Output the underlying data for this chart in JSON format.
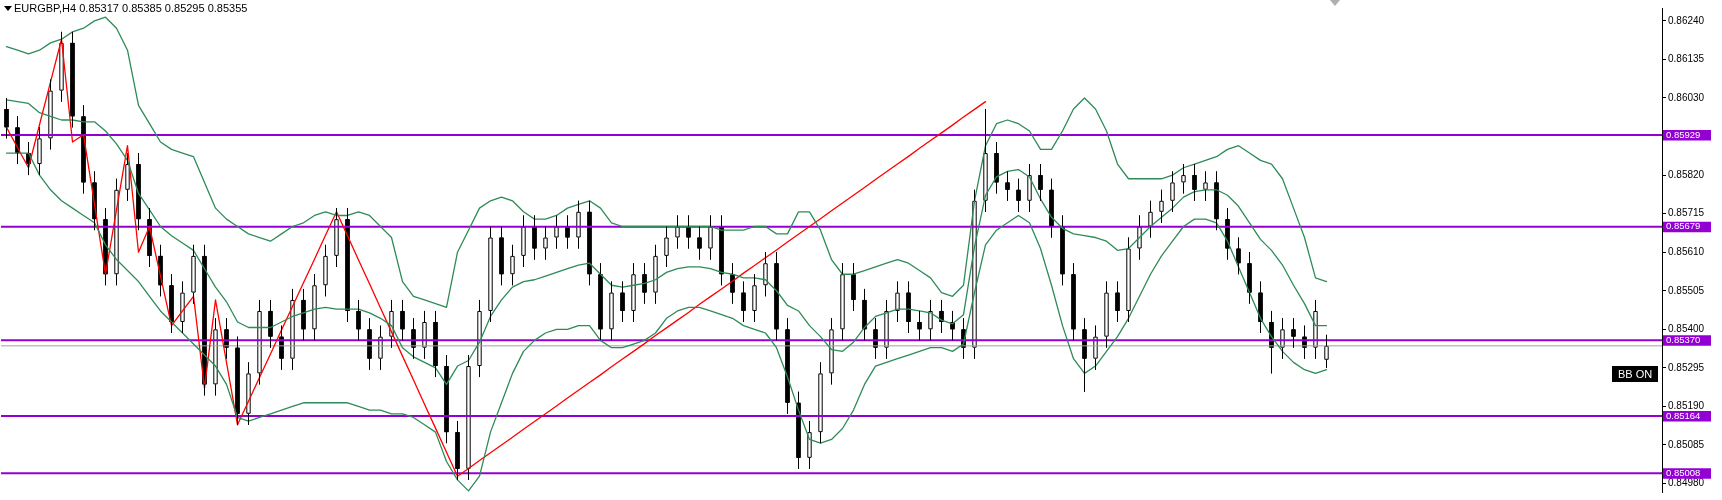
{
  "chart_data": {
    "type": "candlestick",
    "title": "EURGBP,H4 0.85317 0.85385 0.85295 0.85355",
    "categories": [
      null,
      null,
      null,
      null,
      null,
      null,
      null,
      null,
      null,
      null,
      null,
      null,
      null,
      null,
      null,
      null,
      null,
      null,
      null,
      null,
      null,
      null,
      null,
      null,
      null,
      null,
      null,
      null,
      null,
      null,
      null,
      null,
      null,
      null,
      null,
      null,
      null,
      null,
      null,
      null,
      null,
      null,
      null,
      null,
      null,
      null,
      null,
      null,
      null,
      null,
      null,
      null,
      null,
      null,
      null,
      null,
      null,
      null,
      null,
      null,
      null,
      null,
      null,
      null,
      null,
      null,
      null,
      null,
      null,
      null,
      null,
      null,
      null,
      null,
      null,
      null,
      null,
      null,
      null,
      null,
      null,
      null,
      null,
      null,
      null,
      null,
      null,
      null,
      null,
      null,
      null,
      null,
      null,
      null,
      null,
      null,
      null,
      null,
      null,
      null,
      null,
      null,
      null,
      null,
      null,
      null,
      null,
      null,
      null,
      null,
      null,
      null,
      null,
      null,
      null,
      null,
      null,
      null,
      null,
      null,
      null,
      null,
      null,
      null,
      null,
      null,
      null,
      null,
      null,
      null,
      null,
      null,
      null,
      null,
      null,
      null,
      null,
      null,
      null,
      null,
      null,
      null,
      null,
      null,
      null,
      null,
      null,
      null,
      null,
      null,
      null
    ],
    "ohlc": [
      [
        0.86,
        0.8603,
        0.8592,
        0.8595
      ],
      [
        0.8595,
        0.8598,
        0.8585,
        0.8588
      ],
      [
        0.8588,
        0.8591,
        0.8582,
        0.8585
      ],
      [
        0.8585,
        0.8595,
        0.8582,
        0.8592
      ],
      [
        0.8592,
        0.8608,
        0.8589,
        0.8605
      ],
      [
        0.8605,
        0.8621,
        0.8602,
        0.8618
      ],
      [
        0.8618,
        0.8621,
        0.8595,
        0.8598
      ],
      [
        0.8598,
        0.8601,
        0.8577,
        0.858
      ],
      [
        0.858,
        0.8583,
        0.8567,
        0.857
      ],
      [
        0.857,
        0.8573,
        0.8552,
        0.8555
      ],
      [
        0.8555,
        0.8581,
        0.8552,
        0.8578
      ],
      [
        0.8578,
        0.8588,
        0.8575,
        0.8585
      ],
      [
        0.8585,
        0.8588,
        0.8567,
        0.857
      ],
      [
        0.857,
        0.8573,
        0.8557,
        0.856
      ],
      [
        0.856,
        0.8563,
        0.8549,
        0.8552
      ],
      [
        0.8552,
        0.8555,
        0.8539,
        0.8542
      ],
      [
        0.8542,
        0.8553,
        0.8539,
        0.855
      ],
      [
        0.855,
        0.8563,
        0.8547,
        0.856
      ],
      [
        0.856,
        0.8563,
        0.8522,
        0.8525
      ],
      [
        0.8525,
        0.8543,
        0.8522,
        0.854
      ],
      [
        0.854,
        0.8543,
        0.8532,
        0.8535
      ],
      [
        0.8535,
        0.8538,
        0.8514,
        0.8517
      ],
      [
        0.8517,
        0.8531,
        0.8514,
        0.8528
      ],
      [
        0.8528,
        0.8548,
        0.8525,
        0.8545
      ],
      [
        0.8545,
        0.8548,
        0.8535,
        0.8538
      ],
      [
        0.8538,
        0.8541,
        0.8529,
        0.8532
      ],
      [
        0.8532,
        0.8551,
        0.8529,
        0.8548
      ],
      [
        0.8548,
        0.8551,
        0.8537,
        0.854
      ],
      [
        0.854,
        0.8555,
        0.8537,
        0.8552
      ],
      [
        0.8552,
        0.8563,
        0.8549,
        0.856
      ],
      [
        0.856,
        0.8573,
        0.8557,
        0.857
      ],
      [
        0.857,
        0.8573,
        0.8542,
        0.8545
      ],
      [
        0.8545,
        0.8548,
        0.8537,
        0.854
      ],
      [
        0.854,
        0.8543,
        0.8529,
        0.8532
      ],
      [
        0.8532,
        0.8541,
        0.8529,
        0.8538
      ],
      [
        0.8538,
        0.8548,
        0.8535,
        0.8545
      ],
      [
        0.8545,
        0.8548,
        0.8537,
        0.854
      ],
      [
        0.854,
        0.8543,
        0.8532,
        0.8535
      ],
      [
        0.8535,
        0.8545,
        0.8532,
        0.8542
      ],
      [
        0.8542,
        0.8545,
        0.8527,
        0.853
      ],
      [
        0.853,
        0.8533,
        0.8509,
        0.8512
      ],
      [
        0.8512,
        0.8515,
        0.8499,
        0.8502
      ],
      [
        0.8502,
        0.8533,
        0.8499,
        0.853
      ],
      [
        0.853,
        0.8548,
        0.8527,
        0.8545
      ],
      [
        0.8545,
        0.8568,
        0.8542,
        0.8565
      ],
      [
        0.8565,
        0.8568,
        0.8552,
        0.8555
      ],
      [
        0.8555,
        0.8563,
        0.8552,
        0.856
      ],
      [
        0.856,
        0.8571,
        0.8557,
        0.8568
      ],
      [
        0.8568,
        0.8571,
        0.8559,
        0.8562
      ],
      [
        0.8562,
        0.8568,
        0.8559,
        0.8565
      ],
      [
        0.8565,
        0.8571,
        0.8562,
        0.8568
      ],
      [
        0.8568,
        0.8571,
        0.8562,
        0.8565
      ],
      [
        0.8565,
        0.8575,
        0.8562,
        0.8572
      ],
      [
        0.8572,
        0.8575,
        0.8552,
        0.8555
      ],
      [
        0.8555,
        0.8558,
        0.8537,
        0.854
      ],
      [
        0.854,
        0.8553,
        0.8537,
        0.855
      ],
      [
        0.855,
        0.8553,
        0.8542,
        0.8545
      ],
      [
        0.8545,
        0.8558,
        0.8542,
        0.8555
      ],
      [
        0.8555,
        0.8558,
        0.8547,
        0.855
      ],
      [
        0.855,
        0.8563,
        0.8547,
        0.856
      ],
      [
        0.856,
        0.8568,
        0.8557,
        0.8565
      ],
      [
        0.8565,
        0.8571,
        0.8562,
        0.8568
      ],
      [
        0.8568,
        0.8571,
        0.8562,
        0.8565
      ],
      [
        0.8565,
        0.8568,
        0.8559,
        0.8562
      ],
      [
        0.8562,
        0.8571,
        0.8559,
        0.8568
      ],
      [
        0.8568,
        0.8571,
        0.8552,
        0.8555
      ],
      [
        0.8555,
        0.8558,
        0.8547,
        0.855
      ],
      [
        0.855,
        0.8553,
        0.8542,
        0.8545
      ],
      [
        0.8545,
        0.8555,
        0.8542,
        0.8552
      ],
      [
        0.8552,
        0.8561,
        0.8549,
        0.8558
      ],
      [
        0.8558,
        0.8561,
        0.8537,
        0.854
      ],
      [
        0.854,
        0.8543,
        0.8517,
        0.852
      ],
      [
        0.852,
        0.8523,
        0.8502,
        0.8505
      ],
      [
        0.8505,
        0.8515,
        0.8502,
        0.8512
      ],
      [
        0.8512,
        0.8531,
        0.8509,
        0.8528
      ],
      [
        0.8528,
        0.8543,
        0.8525,
        0.854
      ],
      [
        0.854,
        0.8558,
        0.8537,
        0.8555
      ],
      [
        0.8555,
        0.8558,
        0.8545,
        0.8548
      ],
      [
        0.8548,
        0.8551,
        0.8537,
        0.854
      ],
      [
        0.854,
        0.8543,
        0.8532,
        0.8535
      ],
      [
        0.8535,
        0.8548,
        0.8532,
        0.8545
      ],
      [
        0.8545,
        0.8553,
        0.8542,
        0.855
      ],
      [
        0.855,
        0.8553,
        0.8539,
        0.8542
      ],
      [
        0.8542,
        0.8545,
        0.8537,
        0.854
      ],
      [
        0.854,
        0.8548,
        0.8537,
        0.8545
      ],
      [
        0.8545,
        0.8548,
        0.8539,
        0.8542
      ],
      [
        0.8542,
        0.8545,
        0.8537,
        0.854
      ],
      [
        0.854,
        0.8543,
        0.8532,
        0.8535
      ],
      [
        0.8535,
        0.8578,
        0.8532,
        0.8575
      ],
      [
        0.8575,
        0.86,
        0.8572,
        0.8588
      ],
      [
        0.8588,
        0.8591,
        0.8577,
        0.858
      ],
      [
        0.858,
        0.8583,
        0.8575,
        0.8578
      ],
      [
        0.8578,
        0.8581,
        0.8572,
        0.8575
      ],
      [
        0.8575,
        0.8585,
        0.8572,
        0.8582
      ],
      [
        0.8582,
        0.8585,
        0.8575,
        0.8578
      ],
      [
        0.8578,
        0.8581,
        0.8565,
        0.8568
      ],
      [
        0.8568,
        0.8571,
        0.8552,
        0.8555
      ],
      [
        0.8555,
        0.8558,
        0.8537,
        0.854
      ],
      [
        0.854,
        0.8543,
        0.8523,
        0.8532
      ],
      [
        0.8532,
        0.8541,
        0.8529,
        0.8538
      ],
      [
        0.8538,
        0.8553,
        0.8535,
        0.855
      ],
      [
        0.855,
        0.8553,
        0.8542,
        0.8545
      ],
      [
        0.8545,
        0.8565,
        0.8542,
        0.8562
      ],
      [
        0.8562,
        0.8571,
        0.8559,
        0.8568
      ],
      [
        0.8568,
        0.8575,
        0.8565,
        0.8572
      ],
      [
        0.8572,
        0.8578,
        0.8569,
        0.8575
      ],
      [
        0.8575,
        0.8583,
        0.8572,
        0.858
      ],
      [
        0.858,
        0.8585,
        0.8577,
        0.8582
      ],
      [
        0.8582,
        0.8585,
        0.8575,
        0.8578
      ],
      [
        0.8578,
        0.8583,
        0.8575,
        0.858
      ],
      [
        0.858,
        0.8583,
        0.8567,
        0.857
      ],
      [
        0.857,
        0.8573,
        0.8559,
        0.8562
      ],
      [
        0.8562,
        0.8565,
        0.8555,
        0.8558
      ],
      [
        0.8558,
        0.8561,
        0.8547,
        0.855
      ],
      [
        0.855,
        0.8553,
        0.8539,
        0.8542
      ],
      [
        0.8542,
        0.8545,
        0.8528,
        0.8535
      ],
      [
        0.8535,
        0.8543,
        0.8532,
        0.854
      ],
      [
        0.854,
        0.8543,
        0.8535,
        0.8538
      ],
      [
        0.8538,
        0.8541,
        0.8532,
        0.8535
      ],
      [
        0.8535,
        0.8548,
        0.8532,
        0.8545
      ],
      [
        0.85317,
        0.85385,
        0.85295,
        0.85355
      ],
      null,
      null,
      null,
      null,
      null,
      null,
      null,
      null,
      null,
      null,
      null,
      null,
      null,
      null,
      null,
      null,
      null,
      null,
      null,
      null,
      null,
      null,
      null,
      null,
      null,
      null,
      null,
      null,
      null,
      null
    ],
    "color": "#000000",
    "colors": [
      "#000000",
      "#000000",
      "#000000",
      "#ffffff",
      "#ffffff",
      "#ffffff",
      "#000000",
      "#000000",
      "#000000",
      "#000000",
      "#ffffff",
      "#ffffff",
      "#000000",
      "#000000",
      "#000000",
      "#000000",
      "#ffffff",
      "#ffffff",
      "#000000",
      "#ffffff",
      "#000000",
      "#000000",
      "#ffffff",
      "#ffffff",
      "#000000",
      "#000000",
      "#ffffff",
      "#000000",
      "#ffffff",
      "#ffffff",
      "#ffffff",
      "#000000",
      "#000000",
      "#000000",
      "#ffffff",
      "#ffffff",
      "#000000",
      "#000000",
      "#ffffff",
      "#000000",
      "#000000",
      "#000000",
      "#ffffff",
      "#ffffff",
      "#ffffff",
      "#000000",
      "#ffffff",
      "#ffffff",
      "#000000",
      "#ffffff",
      "#ffffff",
      "#000000",
      "#ffffff",
      "#000000",
      "#000000",
      "#ffffff",
      "#000000",
      "#ffffff",
      "#000000",
      "#ffffff",
      "#ffffff",
      "#ffffff",
      "#000000",
      "#000000",
      "#ffffff",
      "#000000",
      "#000000",
      "#000000",
      "#ffffff",
      "#ffffff",
      "#000000",
      "#000000",
      "#000000",
      "#ffffff",
      "#ffffff",
      "#ffffff",
      "#ffffff",
      "#000000",
      "#000000",
      "#000000",
      "#ffffff",
      "#ffffff",
      "#000000",
      "#000000",
      "#ffffff",
      "#000000",
      "#000000",
      "#000000",
      "#ffffff",
      "#ffffff",
      "#000000",
      "#000000",
      "#000000",
      "#ffffff",
      "#000000",
      "#000000",
      "#000000",
      "#000000",
      "#000000",
      "#ffffff",
      "#ffffff",
      "#000000",
      "#ffffff",
      "#ffffff",
      "#ffffff",
      "#ffffff",
      "#ffffff",
      "#ffffff",
      "#000000",
      "#ffffff",
      "#000000",
      "#000000",
      "#000000",
      "#000000",
      "#000000",
      "#000000",
      "#ffffff",
      "#000000",
      "#000000",
      "#ffffff",
      "#ffffff",
      null,
      null,
      null,
      null,
      null,
      null,
      null,
      null,
      null,
      null,
      null,
      null,
      null,
      null,
      null,
      null,
      null,
      null,
      null,
      null,
      null,
      null,
      null,
      null,
      null,
      null,
      null,
      null,
      null,
      null
    ],
    "series": [
      {
        "type": "line",
        "color": "#2e8b57",
        "values": [
          0.8617,
          0.8616,
          0.8615,
          0.8616,
          0.8618,
          0.8619,
          0.8621,
          0.8622,
          0.8624,
          0.8625,
          0.8622,
          0.8616,
          0.8601,
          0.8596,
          0.8591,
          0.8589,
          0.8588,
          0.8587,
          0.858,
          0.8573,
          0.857,
          0.8568,
          0.8566,
          0.8565,
          0.8564,
          0.8566,
          0.8568,
          0.8569,
          0.8571,
          0.8572,
          0.8571,
          0.8571,
          0.8572,
          0.8571,
          0.8568,
          0.8565,
          0.8553,
          0.8549,
          0.8548,
          0.8547,
          0.8546,
          0.8561,
          0.8567,
          0.8573,
          0.8575,
          0.8576,
          0.8575,
          0.8572,
          0.857,
          0.857,
          0.8571,
          0.8573,
          0.8574,
          0.8575,
          0.8573,
          0.8569,
          0.8568,
          0.8568,
          0.8568,
          0.8568,
          0.8568,
          0.8568,
          0.8568,
          0.8568,
          0.8568,
          0.8567,
          0.8567,
          0.8567,
          0.8568,
          0.8568,
          0.8566,
          0.8566,
          0.8572,
          0.8572,
          0.8567,
          0.8559,
          0.8555,
          0.8555,
          0.8556,
          0.8557,
          0.8558,
          0.8559,
          0.8558,
          0.8556,
          0.8554,
          0.855,
          0.8549,
          0.8552,
          0.8575,
          0.859,
          0.8596,
          0.8597,
          0.8596,
          0.8594,
          0.8589,
          0.8589,
          0.8594,
          0.86,
          0.8603,
          0.86,
          0.8594,
          0.8585,
          0.8581,
          0.8581,
          0.8581,
          0.8581,
          0.8582,
          0.8584,
          0.8585,
          0.8586,
          0.8587,
          0.8589,
          0.859,
          0.8588,
          0.8586,
          0.8585,
          0.8581,
          0.8573,
          0.8565,
          0.8554,
          0.8553,
          null,
          null,
          null,
          null,
          null,
          null,
          null,
          null,
          null,
          null,
          null,
          null,
          null,
          null,
          null,
          null,
          null,
          null,
          null,
          null,
          null,
          null,
          null,
          null,
          null,
          null,
          null,
          null,
          null,
          null
        ]
      },
      {
        "type": "line",
        "color": "#2e8b57",
        "values": [
          0.86025,
          0.8602,
          0.86015,
          0.8599,
          0.8598,
          0.8597,
          0.8597,
          0.85965,
          0.85965,
          0.8594,
          0.85905,
          0.8586,
          0.8577,
          0.85725,
          0.8568,
          0.85655,
          0.85635,
          0.85615,
          0.85565,
          0.85515,
          0.85475,
          0.8542,
          0.85405,
          0.85405,
          0.85405,
          0.8542,
          0.85435,
          0.85445,
          0.85455,
          0.8546,
          0.85455,
          0.85455,
          0.85455,
          0.85445,
          0.8543,
          0.8541,
          0.8535,
          0.85325,
          0.8531,
          0.85295,
          0.8525,
          0.853,
          0.85315,
          0.85365,
          0.85435,
          0.8548,
          0.85515,
          0.8553,
          0.85535,
          0.85545,
          0.85555,
          0.85565,
          0.85575,
          0.8558,
          0.8555,
          0.8552,
          0.85515,
          0.8552,
          0.85525,
          0.85535,
          0.85555,
          0.85565,
          0.8557,
          0.8557,
          0.85565,
          0.85555,
          0.8555,
          0.8554,
          0.8554,
          0.85535,
          0.85505,
          0.85465,
          0.8545,
          0.8541,
          0.8538,
          0.85345,
          0.8534,
          0.85365,
          0.85405,
          0.85435,
          0.85445,
          0.85455,
          0.85455,
          0.8545,
          0.85445,
          0.85425,
          0.85415,
          0.8544,
          0.85625,
          0.85765,
          0.85815,
          0.8583,
          0.85835,
          0.85815,
          0.85755,
          0.85705,
          0.85675,
          0.8566,
          0.85655,
          0.8565,
          0.8564,
          0.85615,
          0.8562,
          0.8565,
          0.8568,
          0.85705,
          0.8573,
          0.8576,
          0.85775,
          0.8578,
          0.8578,
          0.85765,
          0.85735,
          0.8569,
          0.85645,
          0.85615,
          0.85575,
          0.8552,
          0.8547,
          0.8541,
          0.8541,
          null,
          null,
          null,
          null,
          null,
          null,
          null,
          null,
          null,
          null,
          null,
          null,
          null,
          null,
          null,
          null,
          null,
          null,
          null,
          null,
          null,
          null,
          null,
          null,
          null,
          null,
          null,
          null,
          null,
          null
        ]
      },
      {
        "type": "line",
        "color": "#2e8b57",
        "values": [
          0.8588,
          0.8588,
          0.8588,
          0.8582,
          0.8578,
          0.8575,
          0.8573,
          0.8571,
          0.8569,
          0.8563,
          0.8559,
          0.8556,
          0.8553,
          0.8549,
          0.8545,
          0.8542,
          0.8539,
          0.8536,
          0.8533,
          0.853,
          0.8525,
          0.8516,
          0.8515,
          0.8516,
          0.8517,
          0.8518,
          0.8519,
          0.852,
          0.852,
          0.852,
          0.852,
          0.852,
          0.8519,
          0.8518,
          0.8518,
          0.8517,
          0.8517,
          0.8516,
          0.8514,
          0.8512,
          0.8504,
          0.8499,
          0.8496,
          0.85,
          0.8512,
          0.852,
          0.8528,
          0.8534,
          0.8537,
          0.8539,
          0.854,
          0.854,
          0.8541,
          0.8541,
          0.8537,
          0.8535,
          0.8535,
          0.8536,
          0.8537,
          0.8539,
          0.8543,
          0.8545,
          0.8546,
          0.8546,
          0.8545,
          0.8544,
          0.8543,
          0.8541,
          0.854,
          0.8539,
          0.8535,
          0.8527,
          0.8518,
          0.851,
          0.8509,
          0.851,
          0.8513,
          0.8518,
          0.8525,
          0.853,
          0.8531,
          0.8532,
          0.8533,
          0.8534,
          0.8535,
          0.8535,
          0.8534,
          0.8536,
          0.855,
          0.8563,
          0.8567,
          0.8569,
          0.8571,
          0.8569,
          0.8562,
          0.8552,
          0.8541,
          0.8532,
          0.8528,
          0.853,
          0.8534,
          0.8538,
          0.8543,
          0.8549,
          0.8555,
          0.856,
          0.8564,
          0.8568,
          0.857,
          0.857,
          0.8569,
          0.8564,
          0.8557,
          0.855,
          0.8543,
          0.8538,
          0.8534,
          0.8531,
          0.8529,
          0.8528,
          0.8529,
          null,
          null,
          null,
          null,
          null,
          null,
          null,
          null,
          null,
          null,
          null,
          null,
          null,
          null,
          null,
          null,
          null,
          null,
          null,
          null,
          null,
          null,
          null,
          null,
          null,
          null,
          null,
          null,
          null,
          null
        ]
      },
      {
        "type": "line",
        "color": "#ff0000",
        "values": [
          0.8595,
          0.85895,
          0.8584,
          0.85957,
          0.86073,
          0.8619,
          0.8591,
          0.8593,
          0.8574,
          0.8555,
          0.85725,
          0.859,
          0.8561,
          0.8568,
          0.85545,
          0.8541,
          0.8545,
          0.8549,
          0.8524,
          0.8548,
          0.8531,
          0.8514,
          0.85204,
          0.85269,
          0.85333,
          0.85398,
          0.85462,
          0.85527,
          0.85591,
          0.85656,
          0.8572,
          0.85655,
          0.85589,
          0.85524,
          0.85458,
          0.85393,
          0.85327,
          0.85262,
          0.85196,
          0.85131,
          0.85065,
          0.85,
          0.85021,
          0.85043,
          0.85064,
          0.85085,
          0.85106,
          0.85128,
          0.85149,
          0.8517,
          0.85191,
          0.85213,
          0.85234,
          0.85255,
          0.85276,
          0.85298,
          0.85319,
          0.8534,
          0.85361,
          0.85383,
          0.85404,
          0.85425,
          0.85446,
          0.85468,
          0.85489,
          0.8551,
          0.85531,
          0.85553,
          0.85574,
          0.85595,
          0.85616,
          0.85638,
          0.85659,
          0.8568,
          0.85701,
          0.85723,
          0.85744,
          0.85765,
          0.85786,
          0.85808,
          0.85829,
          0.8585,
          0.85871,
          0.85893,
          0.85914,
          0.85935,
          0.85956,
          0.85978,
          0.85999,
          0.8602,
          null,
          null,
          null,
          null,
          null,
          null,
          null,
          null,
          null,
          null,
          null,
          null,
          null,
          null,
          null,
          null,
          null,
          null,
          null,
          null,
          null,
          null,
          null,
          null,
          null,
          null,
          null,
          null,
          null,
          null,
          null,
          null,
          null,
          null,
          null,
          null,
          null,
          null,
          null,
          null,
          null,
          null,
          null,
          null,
          null,
          null,
          null,
          null,
          null,
          null,
          null,
          null,
          null,
          null,
          null,
          null,
          null,
          null,
          null,
          null,
          null
        ]
      }
    ],
    "ylim": [
      0.84957,
      0.86275
    ],
    "yticks": [
      {
        "value": 0.8624,
        "label": "0.86240"
      },
      0.86135,
      {
        "value": 0.8603,
        "label": "0.86030"
      },
      {
        "value": 0.8582,
        "label": "0.85820"
      },
      0.85715,
      {
        "value": 0.8561,
        "label": "0.85610"
      },
      0.85505,
      {
        "value": 0.854,
        "label": "0.85400"
      },
      0.85295,
      {
        "value": 0.8519,
        "label": "0.85190"
      },
      0.85085,
      {
        "value": 0.8498,
        "label": "0.84980"
      }
    ],
    "ref_lines": [
      {
        "axis": "y",
        "value": 0.85929,
        "label": "0.85929",
        "color": "#9400d3"
      },
      {
        "axis": "y",
        "value": 0.85679,
        "label": "0.85679",
        "color": "#9400d3"
      },
      {
        "axis": "y",
        "value": 0.8537,
        "label": "0.85370",
        "color": "#9400d3"
      },
      {
        "axis": "y",
        "value": 0.85164,
        "label": "0.85164",
        "color": "#9400d3"
      },
      {
        "axis": "y",
        "value": 0.85008,
        "label": "0.85008",
        "color": "#9400d3"
      },
      {
        "axis": "y",
        "value": 0.85355,
        "color": "#a0a0a0"
      }
    ],
    "annotations": [
      "BB ON"
    ],
    "grid": false,
    "tick_labels": "y",
    "marker": "none"
  }
}
